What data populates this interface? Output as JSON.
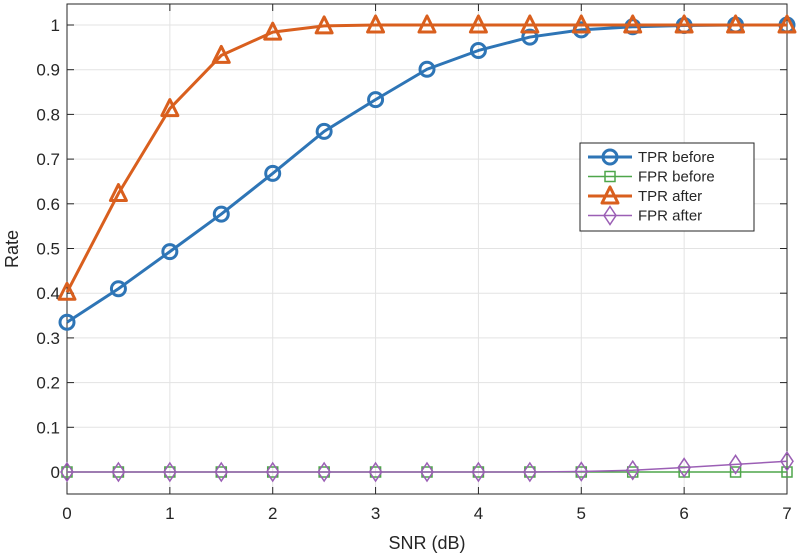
{
  "chart_data": {
    "type": "line",
    "title": "",
    "xlabel": "SNR (dB)",
    "ylabel": "Rate",
    "xlim": [
      0,
      7
    ],
    "ylim": [
      -0.05,
      1.05
    ],
    "xticks": [
      0,
      1,
      2,
      3,
      4,
      5,
      6,
      7
    ],
    "yticks": [
      0,
      0.1,
      0.2,
      0.3,
      0.4,
      0.5,
      0.6,
      0.7,
      0.8,
      0.9,
      1
    ],
    "ytick_labels": [
      "0",
      "0.1",
      "0.2",
      "0.3",
      "0.4",
      "0.5",
      "0.6",
      "0.7",
      "0.8",
      "0.9",
      "1"
    ],
    "grid": true,
    "legend_position": "east",
    "x": [
      0,
      0.5,
      1,
      1.5,
      2,
      2.5,
      3,
      3.5,
      4,
      4.5,
      5,
      5.5,
      6,
      6.5,
      7
    ],
    "series": [
      {
        "name": "TPR before",
        "color": "#2e75b6",
        "marker": "circle",
        "width": 3,
        "values": [
          0.335,
          0.41,
          0.493,
          0.577,
          0.668,
          0.762,
          0.833,
          0.901,
          0.943,
          0.973,
          0.989,
          0.996,
          0.999,
          1.0,
          1.0
        ]
      },
      {
        "name": "FPR before",
        "color": "#4ea64a",
        "marker": "square",
        "width": 1.5,
        "values": [
          0,
          0,
          0,
          0,
          0,
          0,
          0,
          0,
          0,
          0,
          0,
          0,
          0,
          0,
          0
        ]
      },
      {
        "name": "TPR after",
        "color": "#d95f1e",
        "marker": "triangle",
        "width": 3,
        "values": [
          0.402,
          0.623,
          0.813,
          0.932,
          0.984,
          0.998,
          1.0,
          1.0,
          1.0,
          1.0,
          1.0,
          1.0,
          1.0,
          1.0,
          1.0
        ]
      },
      {
        "name": "FPR after",
        "color": "#9b5fb5",
        "marker": "diamond",
        "width": 1.5,
        "values": [
          0,
          0,
          0,
          0,
          0,
          0,
          0,
          0,
          0,
          0,
          0.001,
          0.004,
          0.01,
          0.017,
          0.024
        ]
      }
    ]
  }
}
